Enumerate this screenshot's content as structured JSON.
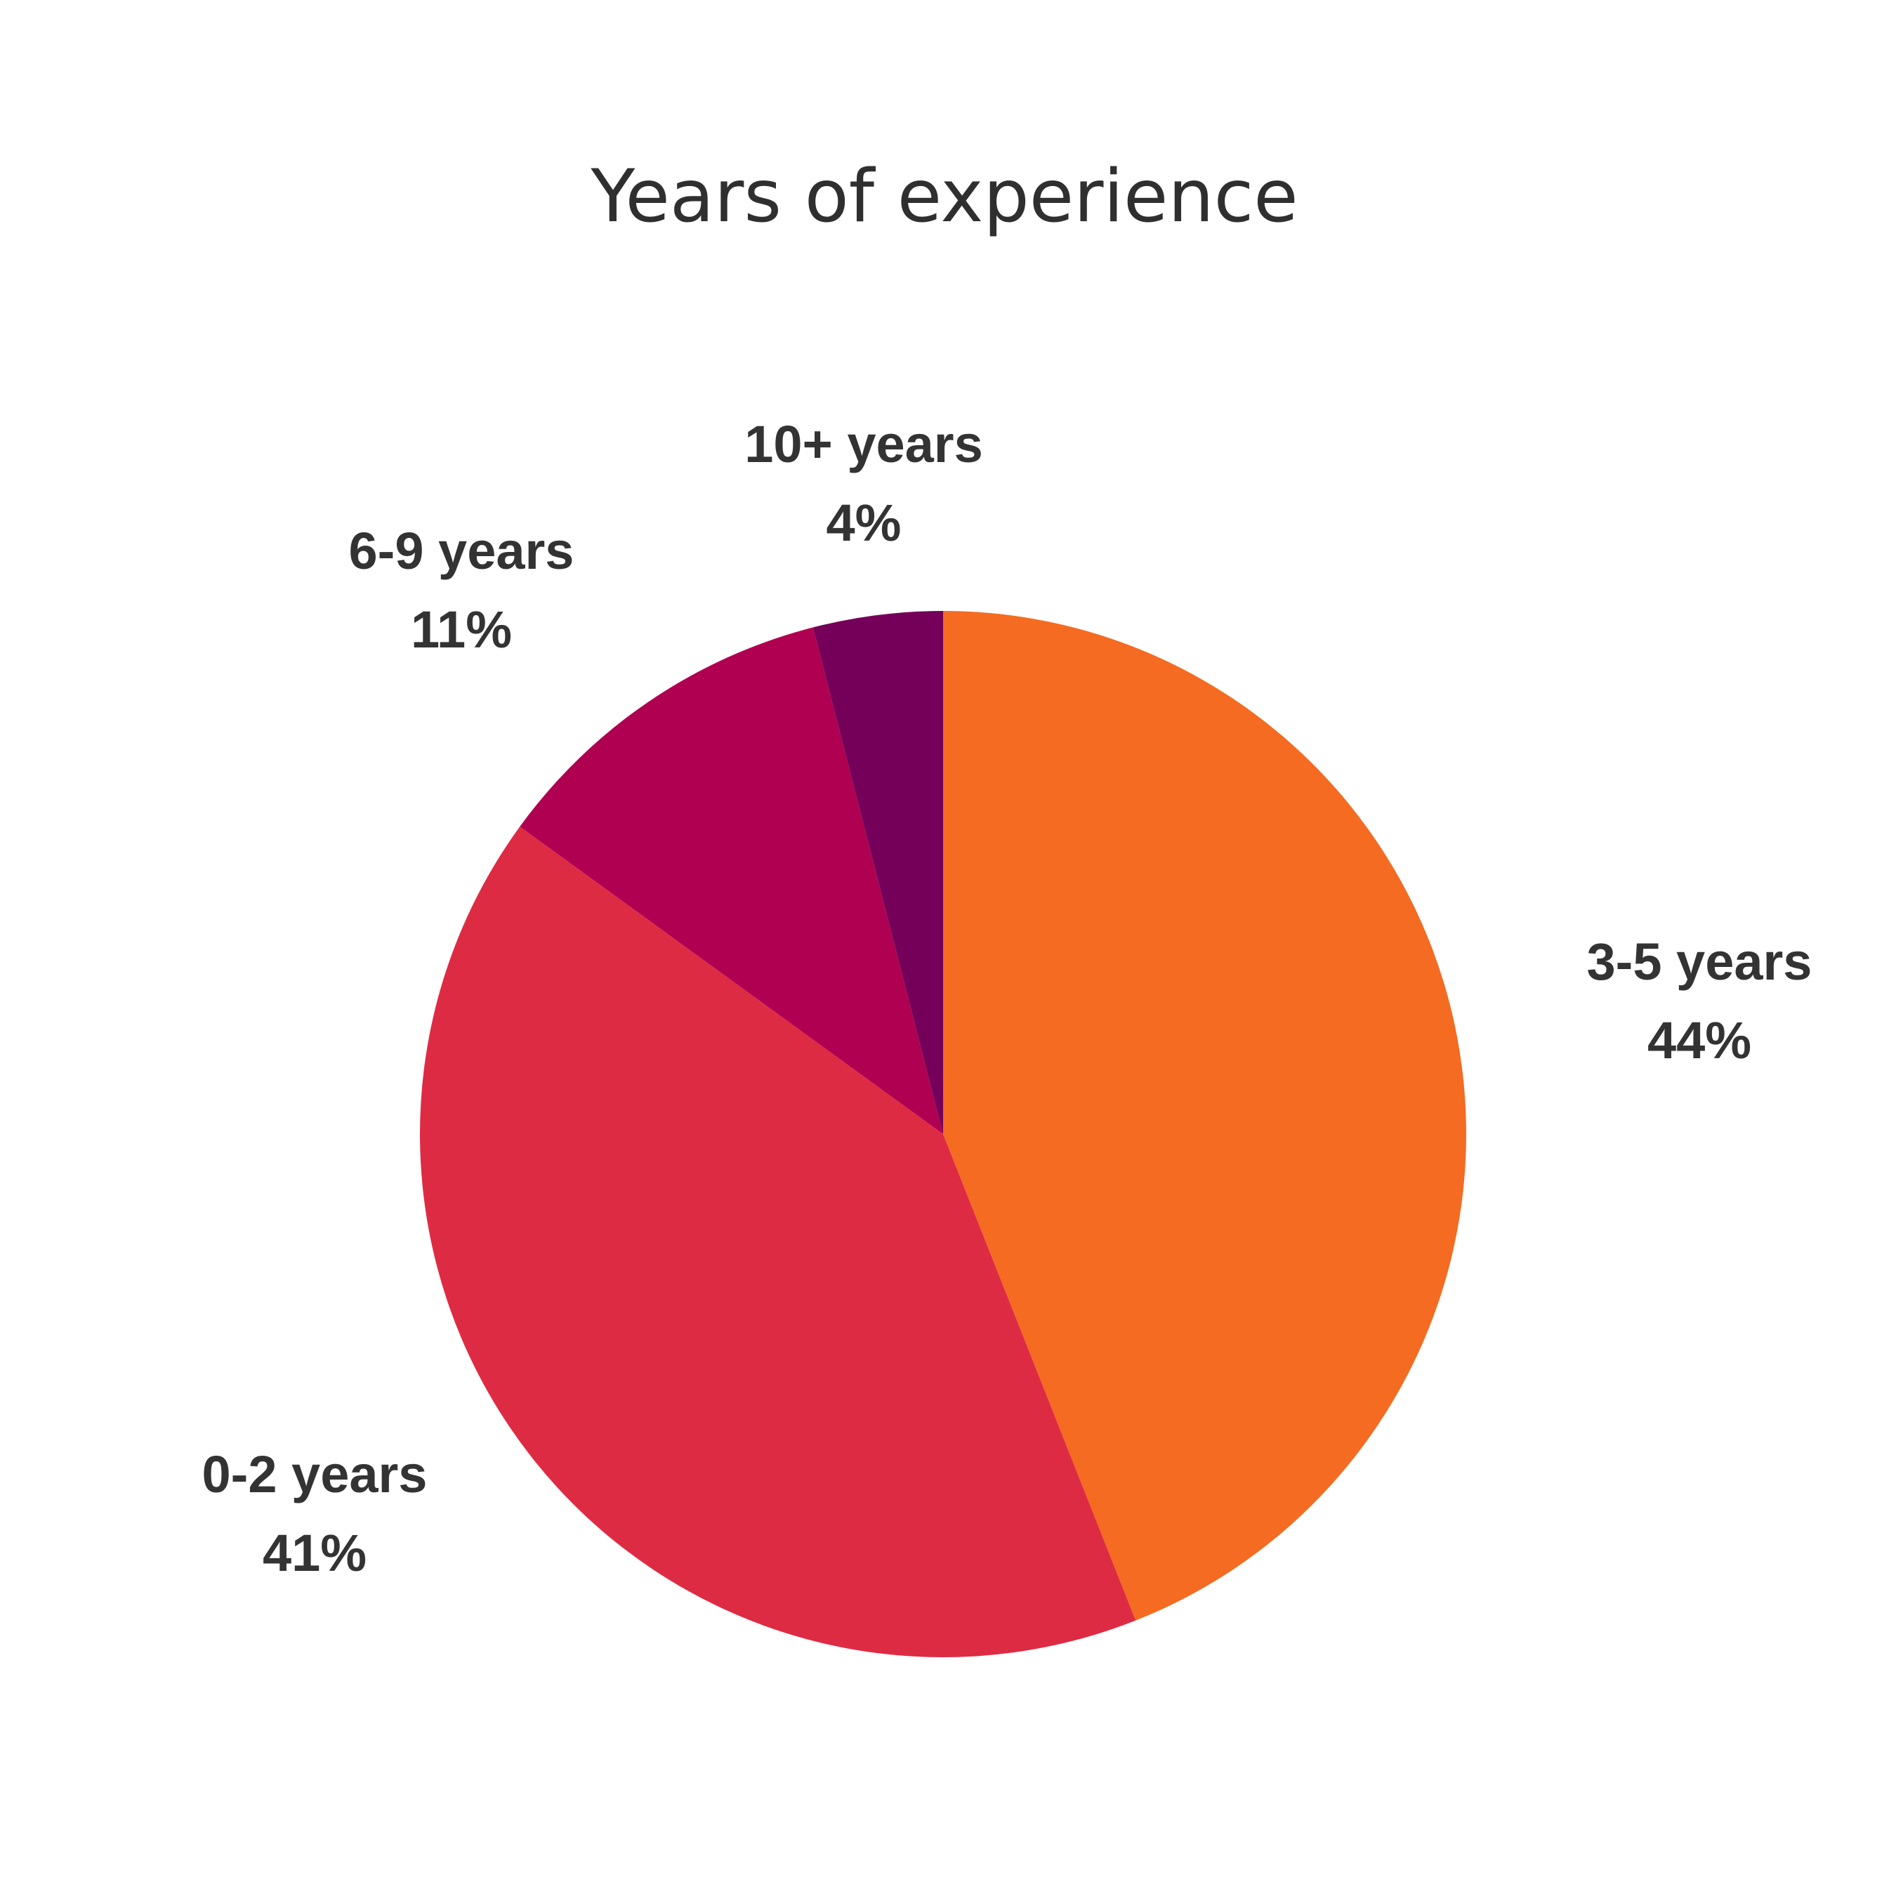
{
  "chart_data": {
    "type": "pie",
    "title": "Years of experience",
    "start": "12 o'clock",
    "direction": "clockwise",
    "slices": [
      {
        "label": "3-5 years",
        "value": 44,
        "value_label": "44%",
        "color": "#F46B21"
      },
      {
        "label": "0-2 years",
        "value": 41,
        "value_label": "41%",
        "color": "#DE2B44"
      },
      {
        "label": "6-9 years",
        "value": 11,
        "value_label": "11%",
        "color": "#B00051"
      },
      {
        "label": "10+ years",
        "value": 4,
        "value_label": "4%",
        "color": "#750059"
      }
    ]
  }
}
